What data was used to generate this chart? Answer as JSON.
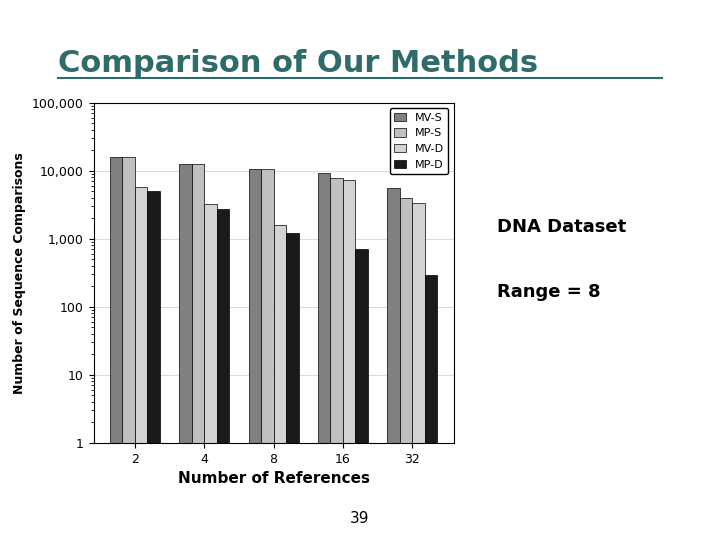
{
  "title": "Comparison of Our Methods",
  "xlabel": "Number of References",
  "ylabel": "Number of Sequence Comparisons",
  "annotation_line1": "DNA Dataset",
  "annotation_line2": "Range = 8",
  "page_number": "39",
  "categories": [
    2,
    4,
    8,
    16,
    32
  ],
  "series": {
    "MV-S": [
      16000,
      12500,
      10500,
      9200,
      5500
    ],
    "MP-S": [
      16000,
      12500,
      10500,
      7800,
      4000
    ],
    "MV-D": [
      5800,
      3200,
      1600,
      7200,
      3300
    ],
    "MP-D": [
      5000,
      2700,
      1200,
      700,
      290
    ]
  },
  "colors": {
    "MV-S": "#808080",
    "MP-S": "#c0c0c0",
    "MV-D": "#d3d3d3",
    "MP-D": "#1a1a1a"
  },
  "ylim": [
    1,
    100000
  ],
  "background_color": "#ffffff",
  "border_color": "#2f6b6b",
  "title_color": "#2f6b6b",
  "title_fontsize": 22,
  "bar_width": 0.18
}
